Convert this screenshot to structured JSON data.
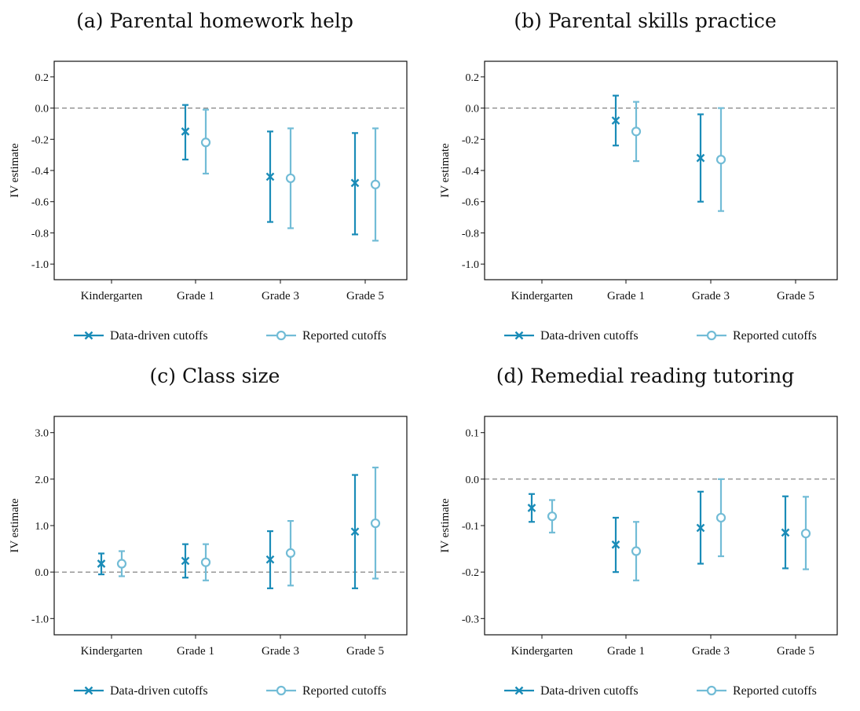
{
  "colors": {
    "data_driven": "#1a8cb8",
    "reported": "#72bcd6",
    "zero_line": "#777777"
  },
  "legend": {
    "data_driven": "Data-driven cutoffs",
    "reported": "Reported cutoffs"
  },
  "chart_data": [
    {
      "id": "a",
      "type": "errorbar",
      "title": "(a) Parental homework help",
      "ylabel": "IV estimate",
      "categories": [
        "Kindergarten",
        "Grade 1",
        "Grade 3",
        "Grade 5"
      ],
      "ylim": [
        -1.1,
        0.3
      ],
      "yticks": [
        0.2,
        0.0,
        -0.2,
        -0.4,
        -0.6,
        -0.8,
        -1.0
      ],
      "ytick_labels": [
        "0.2",
        "0.0",
        "-0.2",
        "-0.4",
        "-0.6",
        "-0.8",
        "-1.0"
      ],
      "zero_line": 0,
      "series": [
        {
          "name": "Data-driven cutoffs",
          "marker": "x",
          "points": [
            null,
            {
              "est": -0.15,
              "lo": -0.33,
              "hi": 0.02
            },
            {
              "est": -0.44,
              "lo": -0.73,
              "hi": -0.15
            },
            {
              "est": -0.48,
              "lo": -0.81,
              "hi": -0.16
            }
          ]
        },
        {
          "name": "Reported cutoffs",
          "marker": "o",
          "points": [
            null,
            {
              "est": -0.22,
              "lo": -0.42,
              "hi": -0.01
            },
            {
              "est": -0.45,
              "lo": -0.77,
              "hi": -0.13
            },
            {
              "est": -0.49,
              "lo": -0.85,
              "hi": -0.13
            }
          ]
        }
      ]
    },
    {
      "id": "b",
      "type": "errorbar",
      "title": "(b) Parental skills practice",
      "ylabel": "IV estimate",
      "categories": [
        "Kindergarten",
        "Grade 1",
        "Grade 3",
        "Grade 5"
      ],
      "ylim": [
        -1.1,
        0.3
      ],
      "yticks": [
        0.2,
        0.0,
        -0.2,
        -0.4,
        -0.6,
        -0.8,
        -1.0
      ],
      "ytick_labels": [
        "0.2",
        "0.0",
        "-0.2",
        "-0.4",
        "-0.6",
        "-0.8",
        "-1.0"
      ],
      "zero_line": 0,
      "series": [
        {
          "name": "Data-driven cutoffs",
          "marker": "x",
          "points": [
            null,
            {
              "est": -0.08,
              "lo": -0.24,
              "hi": 0.08
            },
            {
              "est": -0.32,
              "lo": -0.6,
              "hi": -0.04
            },
            null
          ]
        },
        {
          "name": "Reported cutoffs",
          "marker": "o",
          "points": [
            null,
            {
              "est": -0.15,
              "lo": -0.34,
              "hi": 0.04
            },
            {
              "est": -0.33,
              "lo": -0.66,
              "hi": 0.0
            },
            null
          ]
        }
      ]
    },
    {
      "id": "c",
      "type": "errorbar",
      "title": "(c) Class size",
      "ylabel": "IV estimate",
      "categories": [
        "Kindergarten",
        "Grade 1",
        "Grade 3",
        "Grade 5"
      ],
      "ylim": [
        -1.35,
        3.35
      ],
      "yticks": [
        3.0,
        2.0,
        1.0,
        0.0,
        -1.0
      ],
      "ytick_labels": [
        "3.0",
        "2.0",
        "1.0",
        "0.0",
        "-1.0"
      ],
      "zero_line": 0,
      "series": [
        {
          "name": "Data-driven cutoffs",
          "marker": "x",
          "points": [
            {
              "est": 0.18,
              "lo": -0.05,
              "hi": 0.4
            },
            {
              "est": 0.24,
              "lo": -0.12,
              "hi": 0.6
            },
            {
              "est": 0.27,
              "lo": -0.35,
              "hi": 0.88
            },
            {
              "est": 0.87,
              "lo": -0.35,
              "hi": 2.09
            }
          ]
        },
        {
          "name": "Reported cutoffs",
          "marker": "o",
          "points": [
            {
              "est": 0.18,
              "lo": -0.09,
              "hi": 0.45
            },
            {
              "est": 0.21,
              "lo": -0.18,
              "hi": 0.6
            },
            {
              "est": 0.41,
              "lo": -0.29,
              "hi": 1.1
            },
            {
              "est": 1.05,
              "lo": -0.14,
              "hi": 2.25
            }
          ]
        }
      ]
    },
    {
      "id": "d",
      "type": "errorbar",
      "title": "(d) Remedial reading tutoring",
      "ylabel": "IV estimate",
      "categories": [
        "Kindergarten",
        "Grade 1",
        "Grade 3",
        "Grade 5"
      ],
      "ylim": [
        -0.335,
        0.135
      ],
      "yticks": [
        0.1,
        0.0,
        -0.1,
        -0.2,
        -0.3
      ],
      "ytick_labels": [
        "0.1",
        "0.0",
        "-0.1",
        "-0.2",
        "-0.3"
      ],
      "zero_line": 0,
      "series": [
        {
          "name": "Data-driven cutoffs",
          "marker": "x",
          "points": [
            {
              "est": -0.062,
              "lo": -0.092,
              "hi": -0.032
            },
            {
              "est": -0.141,
              "lo": -0.2,
              "hi": -0.083
            },
            {
              "est": -0.105,
              "lo": -0.182,
              "hi": -0.027
            },
            {
              "est": -0.115,
              "lo": -0.192,
              "hi": -0.037
            }
          ]
        },
        {
          "name": "Reported cutoffs",
          "marker": "o",
          "points": [
            {
              "est": -0.08,
              "lo": -0.115,
              "hi": -0.045
            },
            {
              "est": -0.155,
              "lo": -0.218,
              "hi": -0.092
            },
            {
              "est": -0.083,
              "lo": -0.166,
              "hi": 0.0
            },
            {
              "est": -0.117,
              "lo": -0.194,
              "hi": -0.038
            }
          ]
        }
      ]
    }
  ]
}
